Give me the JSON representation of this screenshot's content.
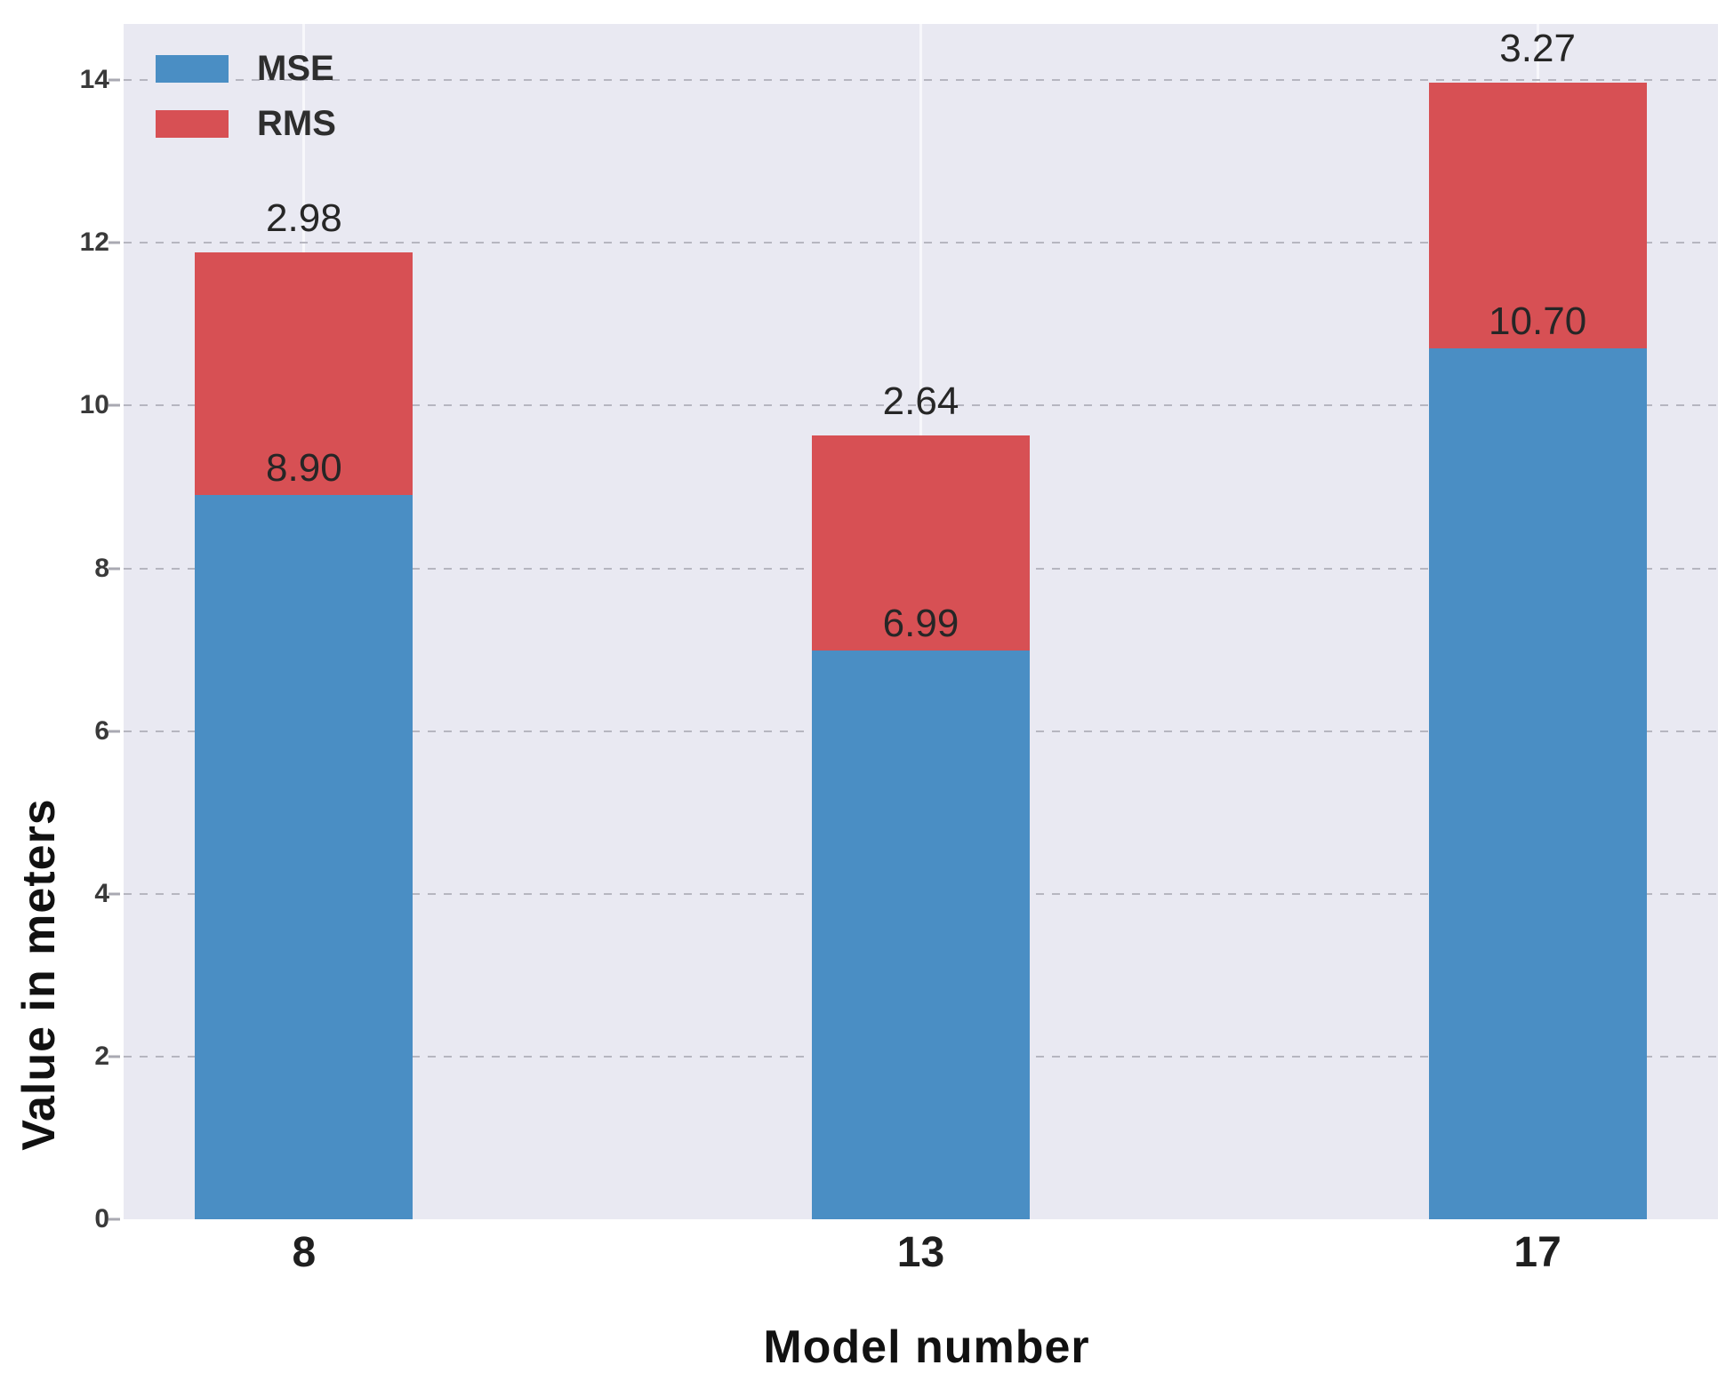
{
  "chart_data": {
    "type": "bar",
    "stacked": true,
    "title": "",
    "xlabel": "Model number",
    "ylabel": "Value in meters",
    "categories": [
      "8",
      "13",
      "17"
    ],
    "series": [
      {
        "name": "MSE",
        "color": "#4a8ec4",
        "values": [
          8.9,
          6.99,
          10.7
        ],
        "labels": [
          "8.90",
          "6.99",
          "10.70"
        ]
      },
      {
        "name": "RMS",
        "color": "#d75054",
        "values": [
          2.98,
          2.64,
          3.27
        ],
        "labels": [
          "2.98",
          "2.64",
          "3.27"
        ]
      }
    ],
    "bar_totals": [
      11.88,
      9.63,
      13.97
    ],
    "top_labels_show_series": "RMS",
    "yticks": [
      0,
      2,
      4,
      6,
      8,
      10,
      12,
      14
    ],
    "ylim": [
      0,
      14.69
    ],
    "legend_position": "upper left",
    "grid": {
      "horizontal": "dashed gray",
      "vertical": "solid white at category centers",
      "axisbelow": true
    },
    "colors": {
      "plot_background": "#e9e9f2",
      "figure_background": "#ffffff",
      "gridline": "#b6b6c0",
      "vertical_gridline": "#f7f7fb",
      "tick_text": "#3a3a3a",
      "label_text": "#262626",
      "axis_title_text": "#111111"
    }
  }
}
